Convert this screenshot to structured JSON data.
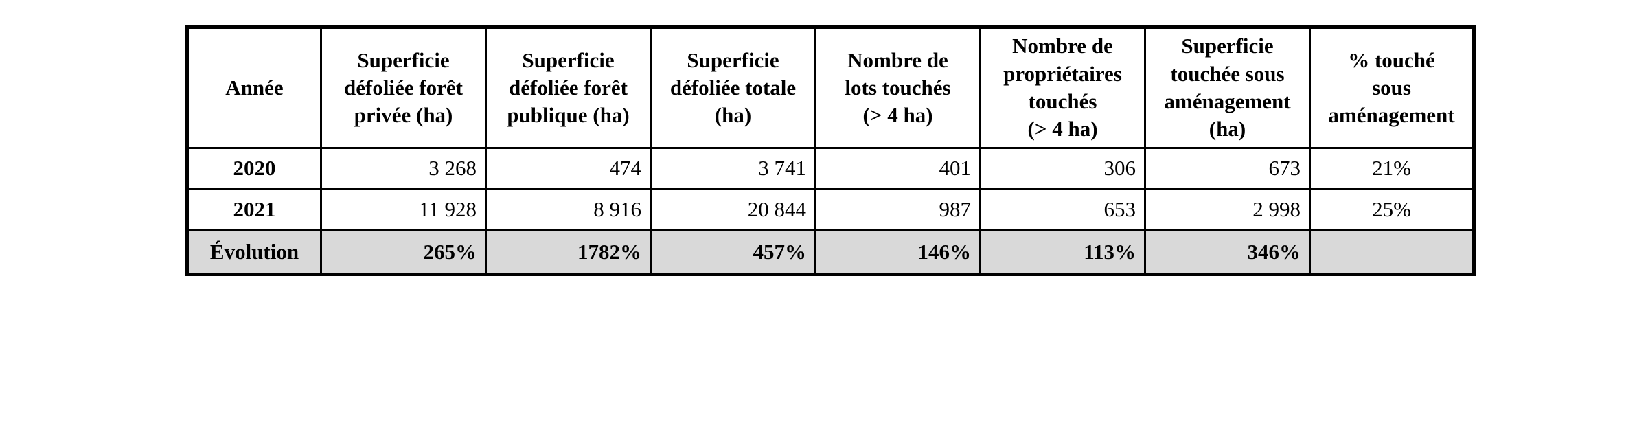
{
  "table": {
    "headers": [
      "Année",
      "Superficie\ndéfoliée forêt\nprivée (ha)",
      "Superficie\ndéfoliée forêt\npublique (ha)",
      "Superficie\ndéfoliée totale\n(ha)",
      "Nombre de\nlots touchés\n(> 4 ha)",
      "Nombre de\npropriétaires\ntouchés\n(> 4 ha)",
      "Superficie\ntouchée sous\naménagement\n(ha)",
      "% touché\nsous\naménagement"
    ],
    "rows": [
      {
        "year": "2020",
        "cells": [
          "3 268",
          "474",
          "3 741",
          "401",
          "306",
          "673",
          "21%"
        ]
      },
      {
        "year": "2021",
        "cells": [
          "11 928",
          "8 916",
          "20 844",
          "987",
          "653",
          "2 998",
          "25%"
        ]
      }
    ],
    "evolution": {
      "label": "Évolution",
      "cells": [
        "265%",
        "1782%",
        "457%",
        "146%",
        "113%",
        "346%",
        ""
      ]
    }
  }
}
